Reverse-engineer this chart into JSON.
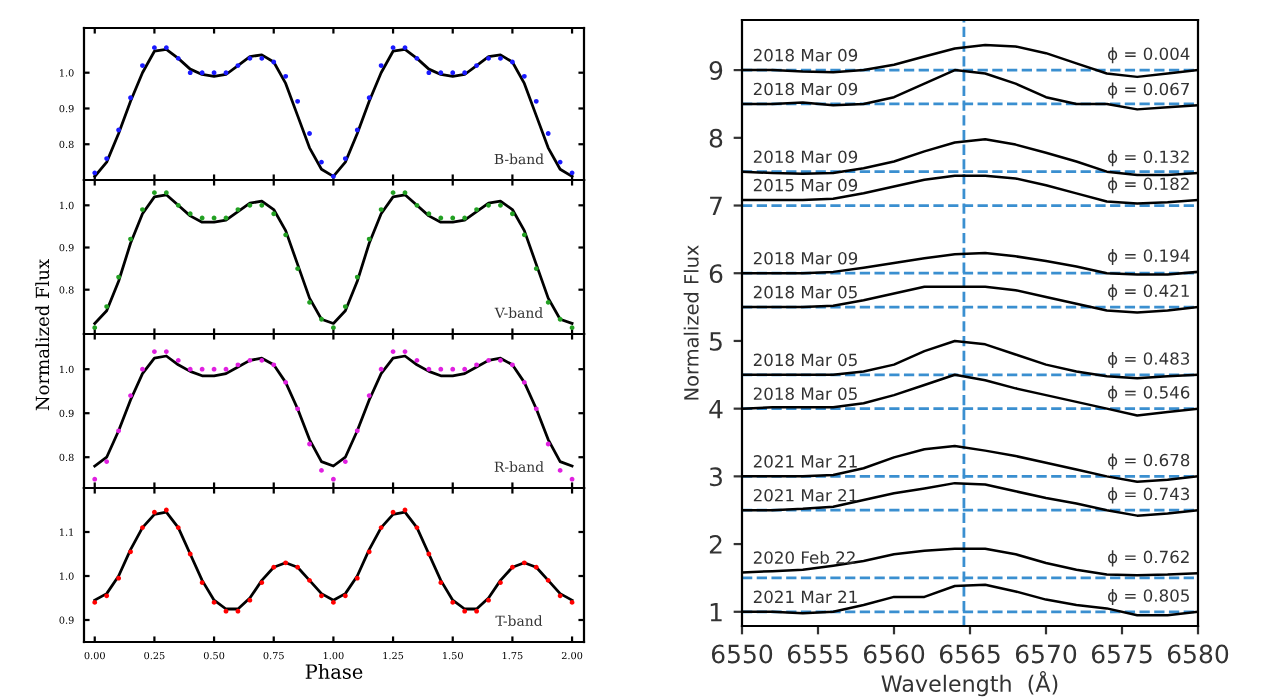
{
  "chart_data": [
    {
      "type": "line",
      "ylabel": "Normalized Flux",
      "annotations": [
        "B-band"
      ],
      "xlim": [
        -0.045,
        2.05
      ],
      "ylim": [
        0.7,
        1.125
      ],
      "xticks": [
        {
          "value": 0,
          "label": null
        },
        {
          "value": 0.25,
          "label": null
        },
        {
          "value": 0.5,
          "label": null
        },
        {
          "value": 0.75,
          "label": null
        },
        {
          "value": 1,
          "label": null
        },
        {
          "value": 1.25,
          "label": null
        },
        {
          "value": 1.5,
          "label": null
        },
        {
          "value": 1.75,
          "label": null
        },
        {
          "value": 2,
          "label": null
        }
      ],
      "yticks": [
        {
          "value": 0.8,
          "label": "0.8"
        },
        {
          "value": 0.9,
          "label": "0.9"
        },
        {
          "value": 1.0,
          "label": "1.0"
        }
      ],
      "tick_labels": "y",
      "grid": false,
      "legend": false,
      "x": [
        0,
        0.05,
        0.1,
        0.15,
        0.2,
        0.25,
        0.3,
        0.35,
        0.4,
        0.45,
        0.5,
        0.55,
        0.6,
        0.65,
        0.7,
        0.75,
        0.8,
        0.85,
        0.9,
        0.95,
        1.0,
        1.05,
        1.1,
        1.15,
        1.2,
        1.25,
        1.3,
        1.35,
        1.4,
        1.45,
        1.5,
        1.55,
        1.6,
        1.65,
        1.7,
        1.75,
        1.8,
        1.85,
        1.9,
        1.95,
        2.0
      ],
      "series": [
        {
          "type": "scatter",
          "marker": "circle",
          "color": "#1a1aff",
          "values": [
            0.72,
            0.76,
            0.84,
            0.93,
            1.02,
            1.07,
            1.07,
            1.04,
            1.0,
            1.0,
            1.0,
            1.0,
            1.02,
            1.04,
            1.04,
            1.03,
            0.99,
            0.92,
            0.83,
            0.75,
            0.71,
            0.76,
            0.84,
            0.93,
            1.02,
            1.07,
            1.07,
            1.04,
            1.0,
            1.0,
            1.0,
            1.0,
            1.02,
            1.04,
            1.04,
            1.03,
            0.99,
            0.92,
            0.83,
            0.75,
            0.72
          ]
        },
        {
          "type": "line",
          "color": "#000000",
          "values": [
            0.71,
            0.75,
            0.83,
            0.92,
            1.0,
            1.06,
            1.065,
            1.04,
            1.01,
            0.995,
            0.99,
            0.995,
            1.02,
            1.045,
            1.05,
            1.03,
            0.97,
            0.88,
            0.79,
            0.73,
            0.71,
            0.75,
            0.83,
            0.92,
            1.0,
            1.06,
            1.065,
            1.04,
            1.01,
            0.995,
            0.99,
            0.995,
            1.02,
            1.045,
            1.05,
            1.03,
            0.97,
            0.88,
            0.79,
            0.73,
            0.71
          ]
        }
      ]
    },
    {
      "type": "line",
      "annotations": [
        "V-band"
      ],
      "xlim": [
        -0.045,
        2.05
      ],
      "ylim": [
        0.695,
        1.06
      ],
      "xticks": [
        {
          "value": 0,
          "label": null
        },
        {
          "value": 0.25,
          "label": null
        },
        {
          "value": 0.5,
          "label": null
        },
        {
          "value": 0.75,
          "label": null
        },
        {
          "value": 1,
          "label": null
        },
        {
          "value": 1.25,
          "label": null
        },
        {
          "value": 1.5,
          "label": null
        },
        {
          "value": 1.75,
          "label": null
        },
        {
          "value": 2,
          "label": null
        }
      ],
      "yticks": [
        {
          "value": 0.8,
          "label": "0.8"
        },
        {
          "value": 0.9,
          "label": "0.9"
        },
        {
          "value": 1.0,
          "label": "1.0"
        }
      ],
      "tick_labels": "y",
      "grid": false,
      "legend": false,
      "x": [
        0,
        0.05,
        0.1,
        0.15,
        0.2,
        0.25,
        0.3,
        0.35,
        0.4,
        0.45,
        0.5,
        0.55,
        0.6,
        0.65,
        0.7,
        0.75,
        0.8,
        0.85,
        0.9,
        0.95,
        1.0,
        1.05,
        1.1,
        1.15,
        1.2,
        1.25,
        1.3,
        1.35,
        1.4,
        1.45,
        1.5,
        1.55,
        1.6,
        1.65,
        1.7,
        1.75,
        1.8,
        1.85,
        1.9,
        1.95,
        2.0
      ],
      "series": [
        {
          "type": "scatter",
          "marker": "circle",
          "color": "#22a022",
          "values": [
            0.71,
            0.76,
            0.83,
            0.92,
            0.99,
            1.03,
            1.03,
            1.0,
            0.98,
            0.97,
            0.97,
            0.97,
            0.99,
            1.0,
            1.0,
            0.98,
            0.93,
            0.85,
            0.77,
            0.73,
            0.71,
            0.76,
            0.83,
            0.92,
            0.99,
            1.03,
            1.03,
            1.0,
            0.98,
            0.97,
            0.97,
            0.97,
            0.99,
            1.0,
            1.0,
            0.98,
            0.93,
            0.85,
            0.77,
            0.73,
            0.71
          ]
        },
        {
          "type": "line",
          "color": "#000000",
          "values": [
            0.72,
            0.75,
            0.82,
            0.91,
            0.98,
            1.02,
            1.025,
            1.0,
            0.975,
            0.96,
            0.96,
            0.965,
            0.985,
            1.005,
            1.01,
            0.99,
            0.94,
            0.86,
            0.78,
            0.73,
            0.72,
            0.75,
            0.82,
            0.91,
            0.98,
            1.02,
            1.025,
            1.0,
            0.975,
            0.96,
            0.96,
            0.965,
            0.985,
            1.005,
            1.01,
            0.99,
            0.94,
            0.86,
            0.78,
            0.73,
            0.72
          ]
        }
      ]
    },
    {
      "type": "line",
      "annotations": [
        "R-band"
      ],
      "xlim": [
        -0.045,
        2.05
      ],
      "ylim": [
        0.73,
        1.08
      ],
      "xticks": [
        {
          "value": 0,
          "label": null
        },
        {
          "value": 0.25,
          "label": null
        },
        {
          "value": 0.5,
          "label": null
        },
        {
          "value": 0.75,
          "label": null
        },
        {
          "value": 1,
          "label": null
        },
        {
          "value": 1.25,
          "label": null
        },
        {
          "value": 1.5,
          "label": null
        },
        {
          "value": 1.75,
          "label": null
        },
        {
          "value": 2,
          "label": null
        }
      ],
      "yticks": [
        {
          "value": 0.8,
          "label": "0.8"
        },
        {
          "value": 0.9,
          "label": "0.9"
        },
        {
          "value": 1.0,
          "label": "1.0"
        }
      ],
      "tick_labels": "y",
      "grid": false,
      "legend": false,
      "x": [
        0,
        0.05,
        0.1,
        0.15,
        0.2,
        0.25,
        0.3,
        0.35,
        0.4,
        0.45,
        0.5,
        0.55,
        0.6,
        0.65,
        0.7,
        0.75,
        0.8,
        0.85,
        0.9,
        0.95,
        1.0,
        1.05,
        1.1,
        1.15,
        1.2,
        1.25,
        1.3,
        1.35,
        1.4,
        1.45,
        1.5,
        1.55,
        1.6,
        1.65,
        1.7,
        1.75,
        1.8,
        1.85,
        1.9,
        1.95,
        2.0
      ],
      "series": [
        {
          "type": "scatter",
          "marker": "circle",
          "color": "#e020e0",
          "values": [
            0.75,
            0.79,
            0.86,
            0.94,
            1.0,
            1.04,
            1.04,
            1.02,
            1.0,
            1.0,
            1.0,
            1.0,
            1.01,
            1.02,
            1.02,
            1.01,
            0.97,
            0.91,
            0.83,
            0.77,
            0.75,
            0.79,
            0.86,
            0.94,
            1.0,
            1.04,
            1.04,
            1.02,
            1.0,
            1.0,
            1.0,
            1.0,
            1.01,
            1.02,
            1.02,
            1.01,
            0.97,
            0.91,
            0.83,
            0.77,
            0.75
          ]
        },
        {
          "type": "line",
          "color": "#000000",
          "values": [
            0.78,
            0.8,
            0.86,
            0.93,
            0.99,
            1.025,
            1.03,
            1.01,
            0.995,
            0.985,
            0.985,
            0.99,
            1.005,
            1.02,
            1.025,
            1.01,
            0.97,
            0.91,
            0.84,
            0.79,
            0.78,
            0.8,
            0.86,
            0.93,
            0.99,
            1.025,
            1.03,
            1.01,
            0.995,
            0.985,
            0.985,
            0.99,
            1.005,
            1.02,
            1.025,
            1.01,
            0.97,
            0.91,
            0.84,
            0.79,
            0.78
          ]
        }
      ]
    },
    {
      "type": "line",
      "xlabel": "Phase",
      "annotations": [
        "T-band"
      ],
      "xlim": [
        -0.045,
        2.05
      ],
      "ylim": [
        0.85,
        1.2
      ],
      "xticks": [
        {
          "value": 0,
          "label": "0.00"
        },
        {
          "value": 0.25,
          "label": "0.25"
        },
        {
          "value": 0.5,
          "label": "0.50"
        },
        {
          "value": 0.75,
          "label": "0.75"
        },
        {
          "value": 1,
          "label": "1.00"
        },
        {
          "value": 1.25,
          "label": "1.25"
        },
        {
          "value": 1.5,
          "label": "1.50"
        },
        {
          "value": 1.75,
          "label": "1.75"
        },
        {
          "value": 2,
          "label": "2.00"
        }
      ],
      "yticks": [
        {
          "value": 0.9,
          "label": "0.9"
        },
        {
          "value": 1.0,
          "label": "1.0"
        },
        {
          "value": 1.1,
          "label": "1.1"
        }
      ],
      "grid": false,
      "legend": false,
      "x": [
        0,
        0.05,
        0.1,
        0.15,
        0.2,
        0.25,
        0.3,
        0.35,
        0.4,
        0.45,
        0.5,
        0.55,
        0.6,
        0.65,
        0.7,
        0.75,
        0.8,
        0.85,
        0.9,
        0.95,
        1.0,
        1.05,
        1.1,
        1.15,
        1.2,
        1.25,
        1.3,
        1.35,
        1.4,
        1.45,
        1.5,
        1.55,
        1.6,
        1.65,
        1.7,
        1.75,
        1.8,
        1.85,
        1.9,
        1.95,
        2.0
      ],
      "series": [
        {
          "type": "scatter",
          "marker": "circle",
          "color": "#ff0000",
          "values": [
            0.94,
            0.955,
            0.995,
            1.055,
            1.11,
            1.145,
            1.15,
            1.11,
            1.05,
            0.985,
            0.94,
            0.92,
            0.92,
            0.945,
            0.985,
            1.02,
            1.03,
            1.02,
            0.99,
            0.955,
            0.94,
            0.955,
            0.995,
            1.055,
            1.11,
            1.145,
            1.15,
            1.11,
            1.05,
            0.985,
            0.94,
            0.92,
            0.92,
            0.945,
            0.985,
            1.02,
            1.03,
            1.02,
            0.99,
            0.955,
            0.94
          ]
        },
        {
          "type": "line",
          "color": "#000000",
          "values": [
            0.945,
            0.96,
            1.0,
            1.06,
            1.11,
            1.14,
            1.145,
            1.11,
            1.05,
            0.99,
            0.945,
            0.925,
            0.925,
            0.95,
            0.99,
            1.02,
            1.03,
            1.02,
            0.99,
            0.96,
            0.945,
            0.96,
            1.0,
            1.06,
            1.11,
            1.14,
            1.145,
            1.11,
            1.05,
            0.99,
            0.945,
            0.925,
            0.925,
            0.95,
            0.99,
            1.02,
            1.03,
            1.02,
            0.99,
            0.96,
            0.945
          ]
        }
      ]
    },
    {
      "type": "line",
      "xlabel": "Wavelength  (Å)",
      "ylabel": "Normalized Flux",
      "xlim": [
        6550,
        6580
      ],
      "ylim": [
        0.79,
        9.74
      ],
      "xticks": [
        6550,
        6555,
        6560,
        6565,
        6570,
        6575,
        6580
      ],
      "yticks": [
        1,
        2,
        3,
        4,
        5,
        6,
        7,
        8,
        9
      ],
      "grid": false,
      "legend": false,
      "x": [
        6550,
        6552,
        6554,
        6556,
        6558,
        6560,
        6562,
        6564,
        6566,
        6568,
        6570,
        6572,
        6574,
        6576,
        6578,
        6580
      ],
      "ref_lines": [
        {
          "axis": "x",
          "value": 6564.6,
          "color": "#3a8fd0",
          "line_style": "dashed"
        },
        {
          "axis": "y",
          "value": 9,
          "color": "#3a8fd0",
          "line_style": "dashed"
        },
        {
          "axis": "y",
          "value": 8.5,
          "color": "#3a8fd0",
          "line_style": "dashed"
        },
        {
          "axis": "y",
          "value": 7.5,
          "color": "#3a8fd0",
          "line_style": "dashed"
        },
        {
          "axis": "y",
          "value": 7,
          "color": "#3a8fd0",
          "line_style": "dashed"
        },
        {
          "axis": "y",
          "value": 6,
          "color": "#3a8fd0",
          "line_style": "dashed"
        },
        {
          "axis": "y",
          "value": 5.5,
          "color": "#3a8fd0",
          "line_style": "dashed"
        },
        {
          "axis": "y",
          "value": 4.5,
          "color": "#3a8fd0",
          "line_style": "dashed"
        },
        {
          "axis": "y",
          "value": 4,
          "color": "#3a8fd0",
          "line_style": "dashed"
        },
        {
          "axis": "y",
          "value": 3,
          "color": "#3a8fd0",
          "line_style": "dashed"
        },
        {
          "axis": "y",
          "value": 2.5,
          "color": "#3a8fd0",
          "line_style": "dashed"
        },
        {
          "axis": "y",
          "value": 1.5,
          "color": "#3a8fd0",
          "line_style": "dashed"
        },
        {
          "axis": "y",
          "value": 1,
          "color": "#3a8fd0",
          "line_style": "dashed"
        }
      ],
      "annotations": [
        "ϕ = 0.004",
        "ϕ = 0.067",
        "ϕ = 0.132",
        "ϕ = 0.182",
        "ϕ = 0.194",
        "ϕ = 0.421",
        "ϕ = 0.483",
        "ϕ = 0.546",
        "ϕ = 0.678",
        "ϕ = 0.743",
        "ϕ = 0.762",
        "ϕ = 0.805"
      ],
      "series": [
        {
          "name": "2018 Mar 09",
          "color": "#000000",
          "values": [
            9.0,
            9.0,
            8.98,
            8.97,
            9.0,
            9.08,
            9.2,
            9.32,
            9.37,
            9.35,
            9.25,
            9.1,
            8.95,
            8.9,
            8.95,
            9.0
          ]
        },
        {
          "name": "2018 Mar 09",
          "color": "#000000",
          "values": [
            8.5,
            8.5,
            8.52,
            8.48,
            8.5,
            8.6,
            8.8,
            9.0,
            8.95,
            8.8,
            8.6,
            8.5,
            8.5,
            8.42,
            8.45,
            8.48
          ]
        },
        {
          "name": "2018 Mar 09",
          "color": "#000000",
          "values": [
            7.5,
            7.48,
            7.47,
            7.48,
            7.55,
            7.65,
            7.8,
            7.93,
            7.98,
            7.9,
            7.78,
            7.65,
            7.5,
            7.45,
            7.45,
            7.48
          ]
        },
        {
          "name": "2015 Mar 09",
          "color": "#000000",
          "values": [
            7.08,
            7.08,
            7.08,
            7.1,
            7.18,
            7.28,
            7.38,
            7.44,
            7.44,
            7.4,
            7.3,
            7.18,
            7.06,
            7.03,
            7.05,
            7.08
          ]
        },
        {
          "name": "2018 Mar 09",
          "color": "#000000",
          "values": [
            6.0,
            6.0,
            6.0,
            6.02,
            6.08,
            6.15,
            6.22,
            6.28,
            6.3,
            6.25,
            6.18,
            6.1,
            6.0,
            5.98,
            5.98,
            6.02
          ]
        },
        {
          "name": "2018 Mar 05",
          "color": "#000000",
          "values": [
            5.5,
            5.5,
            5.5,
            5.52,
            5.6,
            5.7,
            5.8,
            5.8,
            5.8,
            5.75,
            5.65,
            5.55,
            5.45,
            5.42,
            5.45,
            5.5
          ]
        },
        {
          "name": "2018 Mar 05",
          "color": "#000000",
          "values": [
            4.5,
            4.5,
            4.5,
            4.5,
            4.55,
            4.65,
            4.85,
            5.0,
            4.95,
            4.8,
            4.65,
            4.55,
            4.48,
            4.45,
            4.48,
            4.5
          ]
        },
        {
          "name": "2018 Mar 05",
          "color": "#000000",
          "values": [
            4.0,
            4.02,
            4.02,
            4.02,
            4.08,
            4.2,
            4.35,
            4.5,
            4.42,
            4.3,
            4.2,
            4.1,
            4.0,
            3.9,
            3.95,
            4.0
          ]
        },
        {
          "name": "2021 Mar 21",
          "color": "#000000",
          "values": [
            3.0,
            3.0,
            3.0,
            3.02,
            3.12,
            3.28,
            3.4,
            3.45,
            3.38,
            3.3,
            3.2,
            3.1,
            3.0,
            2.92,
            2.95,
            3.0
          ]
        },
        {
          "name": "2021 Mar 21",
          "color": "#000000",
          "values": [
            2.5,
            2.5,
            2.52,
            2.55,
            2.65,
            2.75,
            2.82,
            2.9,
            2.88,
            2.78,
            2.68,
            2.6,
            2.5,
            2.42,
            2.45,
            2.5
          ]
        },
        {
          "name": "2020 Feb 22",
          "color": "#000000",
          "values": [
            1.58,
            1.6,
            1.62,
            1.68,
            1.75,
            1.85,
            1.9,
            1.93,
            1.93,
            1.85,
            1.72,
            1.62,
            1.55,
            1.54,
            1.55,
            1.57
          ]
        },
        {
          "name": "2021 Mar 21",
          "color": "#000000",
          "values": [
            1.0,
            1.0,
            0.98,
            1.0,
            1.1,
            1.22,
            1.22,
            1.38,
            1.4,
            1.3,
            1.18,
            1.1,
            1.05,
            0.95,
            0.95,
            1.0
          ]
        }
      ]
    }
  ]
}
